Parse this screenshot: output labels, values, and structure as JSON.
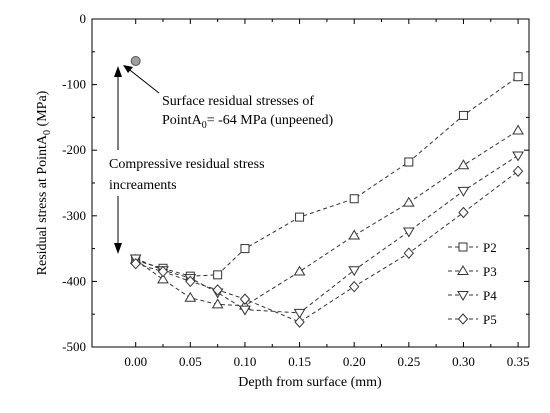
{
  "chart_data": {
    "type": "line",
    "xlabel": "Depth from surface (mm)",
    "ylabel_main": "Residual stress at PointA",
    "ylabel_sub": "0",
    "ylabel_unit": " (MPa)",
    "xlim": [
      -0.04,
      0.36
    ],
    "ylim": [
      -500,
      0
    ],
    "xticks": [
      0.0,
      0.05,
      0.1,
      0.15,
      0.2,
      0.25,
      0.3,
      0.35
    ],
    "xtick_labels": [
      "0.00",
      "0.05",
      "0.10",
      "0.15",
      "0.20",
      "0.25",
      "0.30",
      "0.35"
    ],
    "yticks": [
      0,
      -100,
      -200,
      -300,
      -400,
      -500
    ],
    "ytick_labels": [
      "0",
      "-100",
      "-200",
      "-300",
      "-400",
      "-500"
    ],
    "legend_position": "right",
    "series": [
      {
        "name": "P2",
        "marker": "square",
        "x": [
          0.0,
          0.025,
          0.05,
          0.075,
          0.1,
          0.15,
          0.2,
          0.25,
          0.3,
          0.35
        ],
        "y": [
          -368,
          -380,
          -392,
          -390,
          -350,
          -302,
          -274,
          -218,
          -147,
          -88
        ]
      },
      {
        "name": "P3",
        "marker": "triangle-up",
        "x": [
          0.0,
          0.025,
          0.05,
          0.075,
          0.1,
          0.15,
          0.2,
          0.25,
          0.3,
          0.35
        ],
        "y": [
          -367,
          -397,
          -425,
          -435,
          -437,
          -385,
          -330,
          -280,
          -223,
          -170
        ]
      },
      {
        "name": "P4",
        "marker": "triangle-down",
        "x": [
          0.0,
          0.025,
          0.05,
          0.075,
          0.1,
          0.15,
          0.2,
          0.25,
          0.3,
          0.35
        ],
        "y": [
          -365,
          -383,
          -395,
          -417,
          -443,
          -448,
          -383,
          -324,
          -262,
          -208
        ]
      },
      {
        "name": "P5",
        "marker": "diamond",
        "x": [
          0.0,
          0.025,
          0.05,
          0.075,
          0.1,
          0.15,
          0.2,
          0.25,
          0.3,
          0.35
        ],
        "y": [
          -373,
          -385,
          -400,
          -413,
          -427,
          -462,
          -408,
          -357,
          -295,
          -232
        ]
      }
    ],
    "surface_point": {
      "x": 0.0,
      "y": -64
    },
    "annotations": {
      "surface_line1": "Surface residual stresses of",
      "surface_line2_main": "PointA",
      "surface_line2_sub": "0",
      "surface_line2_rest": "= -64 MPa (unpeened)",
      "compressive_line1": "Compressive residual stress",
      "compressive_line2": "increaments"
    }
  }
}
